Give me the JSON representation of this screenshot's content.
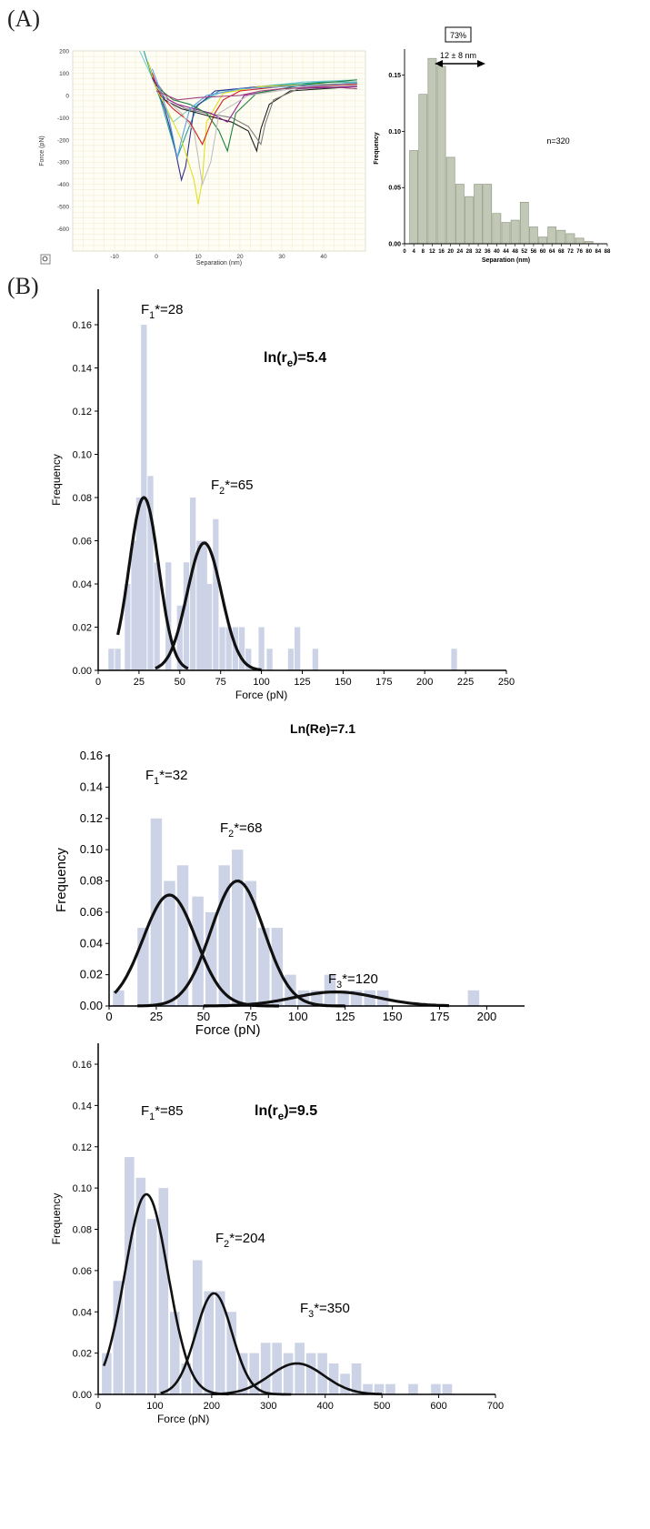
{
  "panels": {
    "a": "(A)",
    "b": "(B)"
  },
  "chart_data": [
    {
      "type": "line",
      "id": "force-curves",
      "xlabel": "Separation (nm)",
      "ylabel": "Force (pN)",
      "xlim": [
        -20,
        50
      ],
      "ylim": [
        -700,
        200
      ],
      "xticks": [
        -10,
        0,
        10,
        20,
        30,
        40
      ],
      "yticks": [
        200,
        100,
        0,
        -100,
        -200,
        -300,
        -400,
        -500,
        -600
      ],
      "grid": true,
      "colors": [
        "#7fd0d0",
        "#20a0a0",
        "#303090",
        "#e0e020",
        "#d02020",
        "#202020",
        "#808080",
        "#902090",
        "#208040",
        "#c0c0c0",
        "#60a0e0",
        "#a04080"
      ],
      "series": [
        {
          "x": [
            -4,
            -2,
            0,
            2,
            4,
            8,
            15,
            25,
            35,
            48
          ],
          "y": [
            200,
            120,
            40,
            -60,
            -120,
            -60,
            10,
            40,
            60,
            70
          ]
        },
        {
          "x": [
            -3,
            -1,
            1,
            3,
            5,
            7,
            10,
            15,
            25,
            40,
            48
          ],
          "y": [
            200,
            80,
            -20,
            -150,
            -280,
            -180,
            -40,
            20,
            40,
            60,
            60
          ]
        },
        {
          "x": [
            -2,
            0,
            2,
            4,
            6,
            7,
            9,
            14,
            25,
            40,
            48
          ],
          "y": [
            150,
            40,
            -60,
            -200,
            -380,
            -320,
            -60,
            20,
            40,
            50,
            55
          ]
        },
        {
          "x": [
            -2,
            0,
            3,
            6,
            9,
            10,
            11,
            12,
            16,
            25,
            40,
            48
          ],
          "y": [
            150,
            30,
            -80,
            -200,
            -380,
            -490,
            -380,
            -120,
            10,
            40,
            50,
            55
          ]
        },
        {
          "x": [
            -1,
            1,
            4,
            8,
            11,
            14,
            16,
            20,
            30,
            48
          ],
          "y": [
            100,
            0,
            -60,
            -120,
            -220,
            -80,
            -20,
            20,
            40,
            50
          ]
        },
        {
          "x": [
            -1,
            2,
            6,
            10,
            14,
            18,
            22,
            24,
            25,
            27,
            32,
            48
          ],
          "y": [
            80,
            -20,
            -60,
            -80,
            -100,
            -120,
            -160,
            -250,
            -150,
            -40,
            20,
            40
          ]
        },
        {
          "x": [
            0,
            3,
            7,
            12,
            18,
            22,
            25,
            26,
            28,
            34,
            48
          ],
          "y": [
            60,
            -20,
            -60,
            -80,
            -100,
            -140,
            -220,
            -130,
            -20,
            30,
            40
          ]
        },
        {
          "x": [
            -1,
            2,
            5,
            9,
            13,
            17,
            19,
            21,
            30,
            48
          ],
          "y": [
            80,
            -10,
            -40,
            -60,
            -80,
            -120,
            -60,
            0,
            30,
            40
          ]
        },
        {
          "x": [
            0,
            4,
            8,
            12,
            15,
            17,
            19,
            24,
            36,
            48
          ],
          "y": [
            40,
            -20,
            -40,
            -80,
            -160,
            -250,
            -80,
            10,
            50,
            70
          ]
        },
        {
          "x": [
            0,
            3,
            6,
            9,
            11,
            13,
            15,
            22,
            36,
            48
          ],
          "y": [
            40,
            -30,
            -80,
            -160,
            -400,
            -300,
            -80,
            0,
            40,
            45
          ]
        },
        {
          "x": [
            -1,
            1,
            3,
            5,
            6,
            8,
            12,
            20,
            36,
            48
          ],
          "y": [
            120,
            20,
            -100,
            -280,
            -200,
            -60,
            0,
            30,
            45,
            55
          ]
        },
        {
          "x": [
            0,
            5,
            10,
            20,
            25,
            30,
            40,
            48
          ],
          "y": [
            20,
            -20,
            -10,
            0,
            20,
            30,
            40,
            30
          ]
        }
      ]
    },
    {
      "type": "bar",
      "id": "separation-histogram",
      "xlabel": "Separation (nm)",
      "ylabel": "Frequency",
      "categories": [
        "0",
        "4",
        "8",
        "12",
        "16",
        "20",
        "24",
        "28",
        "32",
        "36",
        "40",
        "44",
        "48",
        "52",
        "56",
        "60",
        "64",
        "68",
        "72",
        "76",
        "80",
        "84",
        "88"
      ],
      "x": [
        4,
        8,
        12,
        16,
        20,
        24,
        28,
        32,
        36,
        40,
        44,
        48,
        52,
        56,
        60,
        64,
        68,
        72,
        76,
        80
      ],
      "values": [
        0.083,
        0.133,
        0.165,
        0.158,
        0.077,
        0.053,
        0.042,
        0.053,
        0.053,
        0.027,
        0.019,
        0.021,
        0.037,
        0.015,
        0.006,
        0.015,
        0.012,
        0.009,
        0.005,
        0.002
      ],
      "yticks": [
        "0.00",
        "0.05",
        "0.10",
        "0.15"
      ],
      "ylim": [
        0,
        0.17
      ],
      "annotations": {
        "box": "73%",
        "range": "12 ± 8 nm",
        "n": "n=320"
      },
      "bar_color": "#c2c8b6"
    },
    {
      "type": "bar",
      "id": "force-hist-1",
      "xlabel": "Force (pN)",
      "ylabel": "Frequency",
      "xlim": [
        0,
        250
      ],
      "ylim": [
        0,
        0.17
      ],
      "xticks": [
        0,
        25,
        50,
        75,
        100,
        125,
        150,
        175,
        200,
        225,
        250
      ],
      "yticks": [
        "0.00",
        "0.02",
        "0.04",
        "0.06",
        "0.08",
        "0.10",
        "0.12",
        "0.14",
        "0.16"
      ],
      "bin_width": 3.5,
      "x": [
        8,
        12,
        18,
        22,
        25,
        28,
        32,
        36,
        43,
        50,
        54,
        58,
        62,
        65,
        68,
        72,
        76,
        80,
        84,
        88,
        92,
        100,
        105,
        118,
        122,
        133,
        218
      ],
      "values": [
        0.01,
        0.01,
        0.04,
        0.06,
        0.08,
        0.16,
        0.09,
        0.05,
        0.05,
        0.03,
        0.05,
        0.08,
        0.06,
        0.06,
        0.04,
        0.07,
        0.02,
        0.02,
        0.02,
        0.02,
        0.01,
        0.02,
        0.01,
        0.01,
        0.02,
        0.01,
        0.01
      ],
      "fits": [
        {
          "label_main": "F",
          "label_sub": "1",
          "label_tail": "*=28",
          "mu": 28,
          "sigma": 9,
          "amp": 0.08,
          "range": [
            12,
            55
          ]
        },
        {
          "label_main": "F",
          "label_sub": "2",
          "label_tail": "*=65",
          "mu": 65,
          "sigma": 10.5,
          "amp": 0.059,
          "range": [
            35,
            100
          ]
        }
      ],
      "title_main": "ln(r",
      "title_sub": "e",
      "title_tail": ")=5.4"
    },
    {
      "type": "bar",
      "id": "force-hist-2",
      "title": "Ln(Re)=7.1",
      "xlabel": "Force (pN)",
      "ylabel": "Frequency",
      "xlim": [
        0,
        220
      ],
      "ylim": [
        0,
        0.16
      ],
      "xticks": [
        0,
        25,
        50,
        75,
        100,
        125,
        150,
        175,
        200
      ],
      "yticks": [
        "0.00",
        "0.02",
        "0.04",
        "0.06",
        "0.08",
        "0.10",
        "0.12",
        "0.14",
        "0.16"
      ],
      "bin_width": 6,
      "x": [
        5,
        18,
        25,
        32,
        39,
        47,
        54,
        61,
        68,
        75,
        82,
        89,
        96,
        103,
        110,
        117,
        124,
        131,
        138,
        145,
        193
      ],
      "values": [
        0.01,
        0.05,
        0.12,
        0.08,
        0.09,
        0.07,
        0.06,
        0.09,
        0.1,
        0.08,
        0.05,
        0.05,
        0.02,
        0.01,
        0.01,
        0.02,
        0.01,
        0.01,
        0.01,
        0.01,
        0.01
      ],
      "fits": [
        {
          "label_main": "F",
          "label_sub": "1",
          "label_tail": "*=32",
          "mu": 32,
          "sigma": 14,
          "amp": 0.071,
          "range": [
            3,
            90
          ]
        },
        {
          "label_main": "F",
          "label_sub": "2",
          "label_tail": "*=68",
          "mu": 68,
          "sigma": 14,
          "amp": 0.08,
          "range": [
            15,
            125
          ]
        },
        {
          "label_main": "F",
          "label_sub": "3",
          "label_tail": "*=120",
          "mu": 120,
          "sigma": 22,
          "amp": 0.009,
          "range": [
            50,
            180
          ]
        }
      ]
    },
    {
      "type": "bar",
      "id": "force-hist-3",
      "xlabel": "Force (pN)",
      "ylabel": "Frequency",
      "xlim": [
        0,
        700
      ],
      "ylim": [
        0,
        0.17
      ],
      "xticks": [
        0,
        100,
        200,
        300,
        400,
        500,
        600,
        700
      ],
      "yticks": [
        "0.00",
        "0.02",
        "0.04",
        "0.06",
        "0.08",
        "0.10",
        "0.12",
        "0.14",
        "0.16"
      ],
      "bin_width": 17,
      "x": [
        15,
        35,
        55,
        75,
        95,
        115,
        135,
        155,
        175,
        195,
        215,
        235,
        255,
        275,
        295,
        315,
        335,
        355,
        375,
        395,
        415,
        435,
        455,
        475,
        495,
        515,
        555,
        595,
        615
      ],
      "values": [
        0.02,
        0.055,
        0.115,
        0.105,
        0.085,
        0.1,
        0.04,
        0.015,
        0.065,
        0.05,
        0.05,
        0.04,
        0.02,
        0.02,
        0.025,
        0.025,
        0.02,
        0.025,
        0.02,
        0.02,
        0.015,
        0.01,
        0.015,
        0.005,
        0.005,
        0.005,
        0.005,
        0.005,
        0.005
      ],
      "fits": [
        {
          "label_main": "F",
          "label_sub": "1",
          "label_tail": "*=85",
          "mu": 85,
          "sigma": 38,
          "amp": 0.097,
          "range": [
            10,
            230
          ]
        },
        {
          "label_main": "F",
          "label_sub": "2",
          "label_tail": "*=204",
          "mu": 204,
          "sigma": 32,
          "amp": 0.049,
          "range": [
            110,
            340
          ]
        },
        {
          "label_main": "F",
          "label_sub": "3",
          "label_tail": "*=350",
          "mu": 350,
          "sigma": 48,
          "amp": 0.015,
          "range": [
            200,
            500
          ]
        }
      ],
      "title_main": "ln(r",
      "title_sub": "e",
      "title_tail": ")=9.5"
    }
  ]
}
